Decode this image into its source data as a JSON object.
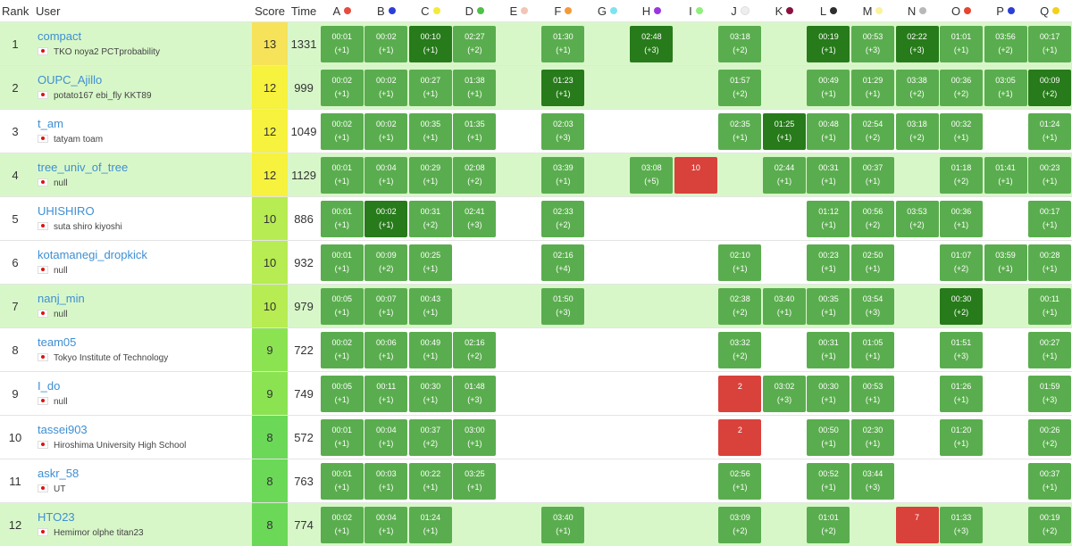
{
  "header": {
    "rank": "Rank",
    "user": "User",
    "score": "Score",
    "time": "Time",
    "problems": [
      {
        "label": "A",
        "color": "#e74c3c"
      },
      {
        "label": "B",
        "color": "#2b3fd6"
      },
      {
        "label": "C",
        "color": "#f4ea3c"
      },
      {
        "label": "D",
        "color": "#4fc04a"
      },
      {
        "label": "E",
        "color": "#f2c6b4"
      },
      {
        "label": "F",
        "color": "#f39a3a"
      },
      {
        "label": "G",
        "color": "#7ee3f1"
      },
      {
        "label": "H",
        "color": "#9b36e0"
      },
      {
        "label": "I",
        "color": "#8ef07a"
      },
      {
        "label": "J",
        "color": "#eeeeee"
      },
      {
        "label": "K",
        "color": "#8a1240"
      },
      {
        "label": "L",
        "color": "#2e2e2e"
      },
      {
        "label": "M",
        "color": "#f9f39a"
      },
      {
        "label": "N",
        "color": "#b8b8b8"
      },
      {
        "label": "O",
        "color": "#e8442e"
      },
      {
        "label": "P",
        "color": "#2b3fd6"
      },
      {
        "label": "Q",
        "color": "#f2d218"
      }
    ]
  },
  "rows": [
    {
      "rank": "1",
      "name": "compact",
      "aff": "TKO noya2 PCTprobability",
      "score": "13",
      "time": "1331",
      "hl": true,
      "cells": [
        [
          "ac",
          "00:01",
          "(+1)"
        ],
        [
          "ac",
          "00:02",
          "(+1)"
        ],
        [
          "fa",
          "00:10",
          "(+1)"
        ],
        [
          "ac",
          "02:27",
          "(+2)"
        ],
        null,
        [
          "ac",
          "01:30",
          "(+1)"
        ],
        null,
        [
          "fa",
          "02:48",
          "(+3)"
        ],
        null,
        [
          "ac",
          "03:18",
          "(+2)"
        ],
        null,
        [
          "fa",
          "00:19",
          "(+1)"
        ],
        [
          "ac",
          "00:53",
          "(+3)"
        ],
        [
          "fa",
          "02:22",
          "(+3)"
        ],
        [
          "ac",
          "01:01",
          "(+1)"
        ],
        [
          "ac",
          "03:56",
          "(+2)"
        ],
        [
          "ac",
          "00:17",
          "(+1)"
        ]
      ]
    },
    {
      "rank": "2",
      "name": "OUPC_Ajillo",
      "aff": "potato167 ebi_fly KKT89",
      "score": "12",
      "time": "999",
      "hl": true,
      "cells": [
        [
          "ac",
          "00:02",
          "(+1)"
        ],
        [
          "ac",
          "00:02",
          "(+1)"
        ],
        [
          "ac",
          "00:27",
          "(+1)"
        ],
        [
          "ac",
          "01:38",
          "(+1)"
        ],
        null,
        [
          "fa",
          "01:23",
          "(+1)"
        ],
        null,
        null,
        null,
        [
          "ac",
          "01:57",
          "(+2)"
        ],
        null,
        [
          "ac",
          "00:49",
          "(+1)"
        ],
        [
          "ac",
          "01:29",
          "(+1)"
        ],
        [
          "ac",
          "03:38",
          "(+2)"
        ],
        [
          "ac",
          "00:36",
          "(+2)"
        ],
        [
          "ac",
          "03:05",
          "(+1)"
        ],
        [
          "fa",
          "00:09",
          "(+2)"
        ]
      ]
    },
    {
      "rank": "3",
      "name": "t_am",
      "aff": "tatyam toam",
      "score": "12",
      "time": "1049",
      "hl": false,
      "cells": [
        [
          "ac",
          "00:02",
          "(+1)"
        ],
        [
          "ac",
          "00:02",
          "(+1)"
        ],
        [
          "ac",
          "00:35",
          "(+1)"
        ],
        [
          "ac",
          "01:35",
          "(+1)"
        ],
        null,
        [
          "ac",
          "02:03",
          "(+3)"
        ],
        null,
        null,
        null,
        [
          "ac",
          "02:35",
          "(+1)"
        ],
        [
          "fa",
          "01:25",
          "(+1)"
        ],
        [
          "ac",
          "00:48",
          "(+1)"
        ],
        [
          "ac",
          "02:54",
          "(+2)"
        ],
        [
          "ac",
          "03:18",
          "(+2)"
        ],
        [
          "ac",
          "00:32",
          "(+1)"
        ],
        null,
        [
          "ac",
          "01:24",
          "(+1)"
        ]
      ]
    },
    {
      "rank": "4",
      "name": "tree_univ_of_tree",
      "aff": "null",
      "score": "12",
      "time": "1129",
      "hl": true,
      "cells": [
        [
          "ac",
          "00:01",
          "(+1)"
        ],
        [
          "ac",
          "00:04",
          "(+1)"
        ],
        [
          "ac",
          "00:29",
          "(+1)"
        ],
        [
          "ac",
          "02:08",
          "(+2)"
        ],
        null,
        [
          "ac",
          "03:39",
          "(+1)"
        ],
        null,
        [
          "ac",
          "03:08",
          "(+5)"
        ],
        [
          "wa",
          "10",
          ""
        ],
        null,
        [
          "ac",
          "02:44",
          "(+1)"
        ],
        [
          "ac",
          "00:31",
          "(+1)"
        ],
        [
          "ac",
          "00:37",
          "(+1)"
        ],
        null,
        [
          "ac",
          "01:18",
          "(+2)"
        ],
        [
          "ac",
          "01:41",
          "(+1)"
        ],
        [
          "ac",
          "00:23",
          "(+1)"
        ]
      ]
    },
    {
      "rank": "5",
      "name": "UHISHIRO",
      "aff": "suta shiro kiyoshi",
      "score": "10",
      "time": "886",
      "hl": false,
      "cells": [
        [
          "ac",
          "00:01",
          "(+1)"
        ],
        [
          "fa",
          "00:02",
          "(+1)"
        ],
        [
          "ac",
          "00:31",
          "(+2)"
        ],
        [
          "ac",
          "02:41",
          "(+3)"
        ],
        null,
        [
          "ac",
          "02:33",
          "(+2)"
        ],
        null,
        null,
        null,
        null,
        null,
        [
          "ac",
          "01:12",
          "(+1)"
        ],
        [
          "ac",
          "00:56",
          "(+2)"
        ],
        [
          "ac",
          "03:53",
          "(+2)"
        ],
        [
          "ac",
          "00:36",
          "(+1)"
        ],
        null,
        [
          "ac",
          "00:17",
          "(+1)"
        ]
      ]
    },
    {
      "rank": "6",
      "name": "kotamanegi_dropkick",
      "aff": "null",
      "score": "10",
      "time": "932",
      "hl": false,
      "cells": [
        [
          "ac",
          "00:01",
          "(+1)"
        ],
        [
          "ac",
          "00:09",
          "(+2)"
        ],
        [
          "ac",
          "00:25",
          "(+1)"
        ],
        null,
        null,
        [
          "ac",
          "02:16",
          "(+4)"
        ],
        null,
        null,
        null,
        [
          "ac",
          "02:10",
          "(+1)"
        ],
        null,
        [
          "ac",
          "00:23",
          "(+1)"
        ],
        [
          "ac",
          "02:50",
          "(+1)"
        ],
        null,
        [
          "ac",
          "01:07",
          "(+2)"
        ],
        [
          "ac",
          "03:59",
          "(+1)"
        ],
        [
          "ac",
          "00:28",
          "(+1)"
        ]
      ]
    },
    {
      "rank": "7",
      "name": "nanj_min",
      "aff": "null",
      "score": "10",
      "time": "979",
      "hl": true,
      "cells": [
        [
          "ac",
          "00:05",
          "(+1)"
        ],
        [
          "ac",
          "00:07",
          "(+1)"
        ],
        [
          "ac",
          "00:43",
          "(+1)"
        ],
        null,
        null,
        [
          "ac",
          "01:50",
          "(+3)"
        ],
        null,
        null,
        null,
        [
          "ac",
          "02:38",
          "(+2)"
        ],
        [
          "ac",
          "03:40",
          "(+1)"
        ],
        [
          "ac",
          "00:35",
          "(+1)"
        ],
        [
          "ac",
          "03:54",
          "(+3)"
        ],
        null,
        [
          "fa",
          "00:30",
          "(+2)"
        ],
        null,
        [
          "ac",
          "00:11",
          "(+1)"
        ]
      ]
    },
    {
      "rank": "8",
      "name": "team05",
      "aff": "Tokyo Institute of Technology",
      "score": "9",
      "time": "722",
      "hl": false,
      "cells": [
        [
          "ac",
          "00:02",
          "(+1)"
        ],
        [
          "ac",
          "00:06",
          "(+1)"
        ],
        [
          "ac",
          "00:49",
          "(+1)"
        ],
        [
          "ac",
          "02:16",
          "(+2)"
        ],
        null,
        null,
        null,
        null,
        null,
        [
          "ac",
          "03:32",
          "(+2)"
        ],
        null,
        [
          "ac",
          "00:31",
          "(+1)"
        ],
        [
          "ac",
          "01:05",
          "(+1)"
        ],
        null,
        [
          "ac",
          "01:51",
          "(+3)"
        ],
        null,
        [
          "ac",
          "00:27",
          "(+1)"
        ]
      ]
    },
    {
      "rank": "9",
      "name": "I_do",
      "aff": "null",
      "score": "9",
      "time": "749",
      "hl": false,
      "cells": [
        [
          "ac",
          "00:05",
          "(+1)"
        ],
        [
          "ac",
          "00:11",
          "(+1)"
        ],
        [
          "ac",
          "00:30",
          "(+1)"
        ],
        [
          "ac",
          "01:48",
          "(+3)"
        ],
        null,
        null,
        null,
        null,
        null,
        [
          "wa",
          "2",
          ""
        ],
        [
          "ac",
          "03:02",
          "(+3)"
        ],
        [
          "ac",
          "00:30",
          "(+1)"
        ],
        [
          "ac",
          "00:53",
          "(+1)"
        ],
        null,
        [
          "ac",
          "01:26",
          "(+1)"
        ],
        null,
        [
          "ac",
          "01:59",
          "(+3)"
        ]
      ]
    },
    {
      "rank": "10",
      "name": "tassei903",
      "aff": "Hiroshima University High School",
      "score": "8",
      "time": "572",
      "hl": false,
      "cells": [
        [
          "ac",
          "00:01",
          "(+1)"
        ],
        [
          "ac",
          "00:04",
          "(+1)"
        ],
        [
          "ac",
          "00:37",
          "(+2)"
        ],
        [
          "ac",
          "03:00",
          "(+1)"
        ],
        null,
        null,
        null,
        null,
        null,
        [
          "wa",
          "2",
          ""
        ],
        null,
        [
          "ac",
          "00:50",
          "(+1)"
        ],
        [
          "ac",
          "02:30",
          "(+1)"
        ],
        null,
        [
          "ac",
          "01:20",
          "(+1)"
        ],
        null,
        [
          "ac",
          "00:26",
          "(+2)"
        ]
      ]
    },
    {
      "rank": "11",
      "name": "askr_58",
      "aff": "UT",
      "score": "8",
      "time": "763",
      "hl": false,
      "cells": [
        [
          "ac",
          "00:01",
          "(+1)"
        ],
        [
          "ac",
          "00:03",
          "(+1)"
        ],
        [
          "ac",
          "00:22",
          "(+1)"
        ],
        [
          "ac",
          "03:25",
          "(+1)"
        ],
        null,
        null,
        null,
        null,
        null,
        [
          "ac",
          "02:56",
          "(+1)"
        ],
        null,
        [
          "ac",
          "00:52",
          "(+1)"
        ],
        [
          "ac",
          "03:44",
          "(+3)"
        ],
        null,
        null,
        null,
        [
          "ac",
          "00:37",
          "(+1)"
        ]
      ]
    },
    {
      "rank": "12",
      "name": "HTO23",
      "aff": "Hemimor olphe titan23",
      "score": "8",
      "time": "774",
      "hl": true,
      "cells": [
        [
          "ac",
          "00:02",
          "(+1)"
        ],
        [
          "ac",
          "00:04",
          "(+1)"
        ],
        [
          "ac",
          "01:24",
          "(+1)"
        ],
        null,
        null,
        [
          "ac",
          "03:40",
          "(+1)"
        ],
        null,
        null,
        null,
        [
          "ac",
          "03:09",
          "(+2)"
        ],
        null,
        [
          "ac",
          "01:01",
          "(+2)"
        ],
        null,
        [
          "wa",
          "7",
          ""
        ],
        [
          "ac",
          "01:33",
          "(+3)"
        ],
        null,
        [
          "ac",
          "00:19",
          "(+2)"
        ]
      ]
    }
  ]
}
